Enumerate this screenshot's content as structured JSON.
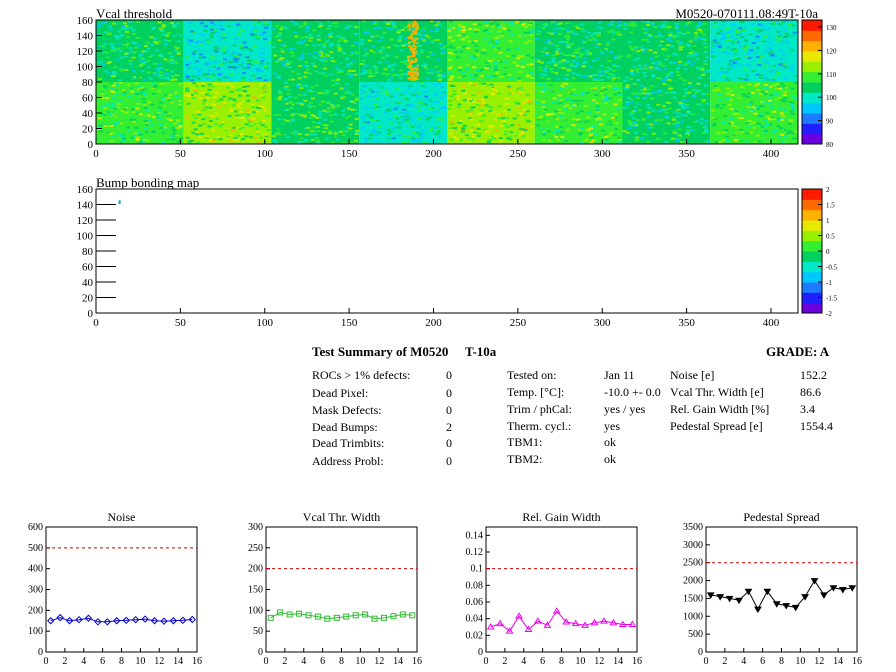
{
  "header": {
    "title": "Vcal threshold",
    "module_id": "M0520-070111.08:49T-10a"
  },
  "summary": {
    "title": "Test Summary of M0520",
    "temp_tag": "T-10a",
    "grade": "GRADE:  A",
    "col1": [
      {
        "label": "ROCs > 1% defects:",
        "value": "0"
      },
      {
        "label": "Dead Pixel:",
        "value": "0"
      },
      {
        "label": "Mask Defects:",
        "value": "0"
      },
      {
        "label": "Dead Bumps:",
        "value": "2"
      },
      {
        "label": "Dead Trimbits:",
        "value": "0"
      },
      {
        "label": "Address Probl:",
        "value": "0"
      }
    ],
    "col2": [
      {
        "label": "Tested on:",
        "value": "Jan 11"
      },
      {
        "label": "Temp. [°C]:",
        "value": "-10.0 +- 0.0"
      },
      {
        "label": "Trim / phCal:",
        "value": "yes / yes"
      },
      {
        "label": "Therm. cycl.:",
        "value": "yes"
      },
      {
        "label": "TBM1:",
        "value": "ok"
      },
      {
        "label": "TBM2:",
        "value": "ok"
      }
    ],
    "col3": [
      {
        "label": "Noise [e]",
        "value": "152.2"
      },
      {
        "label": "Vcal Thr. Width [e]",
        "value": "86.6"
      },
      {
        "label": "Rel. Gain Width [%]",
        "value": "3.4"
      },
      {
        "label": "Pedestal Spread [e]",
        "value": "1554.4"
      }
    ]
  },
  "chart_data": [
    {
      "type": "heatmap",
      "title": "Vcal threshold",
      "x_ticks": [
        "0",
        "50",
        "100",
        "150",
        "200",
        "250",
        "300",
        "350",
        "400"
      ],
      "y_ticks": [
        "0",
        "20",
        "40",
        "60",
        "80",
        "100",
        "120",
        "140",
        "160"
      ],
      "xlim": [
        0,
        416
      ],
      "ylim": [
        0,
        160
      ],
      "roc_cols": 8,
      "roc_rows": 2,
      "roc_means": [
        [
          104,
          100,
          104,
          104,
          108,
          104,
          104,
          100
        ],
        [
          108,
          112,
          106,
          102,
          112,
          108,
          104,
          108
        ]
      ],
      "color_scale": {
        "ticks": [
          "80",
          "90",
          "100",
          "110",
          "120",
          "130"
        ],
        "min": 80,
        "max": 133,
        "colors": [
          "#6a00e0",
          "#2020ff",
          "#1e7bff",
          "#00c8ff",
          "#00e8c8",
          "#00d060",
          "#33ee33",
          "#99f000",
          "#e8e800",
          "#ffb000",
          "#ff6a00",
          "#ff1a00"
        ]
      }
    },
    {
      "type": "heatmap",
      "title": "Bump bonding map",
      "x_ticks": [
        "0",
        "50",
        "100",
        "150",
        "200",
        "250",
        "300",
        "350",
        "400"
      ],
      "y_ticks": [
        "0",
        "20",
        "40",
        "60",
        "80",
        "100",
        "120",
        "140",
        "160"
      ],
      "xlim": [
        0,
        416
      ],
      "ylim": [
        0,
        160
      ],
      "points": [
        {
          "x": 14,
          "y": 144
        },
        {
          "x": 14,
          "y": 142
        }
      ],
      "color_scale": {
        "ticks": [
          "2",
          "1.5",
          "1",
          "0.5",
          "0",
          "-0.5",
          "-1",
          "-1.5",
          "-2"
        ],
        "colors": [
          "#6a00e0",
          "#2020ff",
          "#1e7bff",
          "#00c8ff",
          "#00e8c8",
          "#00d060",
          "#33ee33",
          "#99f000",
          "#e8e800",
          "#ffb000",
          "#ff6a00",
          "#ff1a00"
        ]
      }
    },
    {
      "type": "line",
      "title": "Noise",
      "x": [
        0,
        1,
        2,
        3,
        4,
        5,
        6,
        7,
        8,
        9,
        10,
        11,
        12,
        13,
        14,
        15
      ],
      "y": [
        150,
        165,
        150,
        155,
        162,
        145,
        145,
        150,
        152,
        155,
        158,
        150,
        148,
        150,
        152,
        156
      ],
      "ylim": [
        0,
        600
      ],
      "y_ticks": [
        "0",
        "100",
        "200",
        "300",
        "400",
        "500",
        "600"
      ],
      "x_ticks": [
        "0",
        "2",
        "4",
        "6",
        "8",
        "10",
        "12",
        "14",
        "16"
      ],
      "limit": 500,
      "color": "#0000cc"
    },
    {
      "type": "line",
      "title": "Vcal Thr. Width",
      "x": [
        0,
        1,
        2,
        3,
        4,
        5,
        6,
        7,
        8,
        9,
        10,
        11,
        12,
        13,
        14,
        15
      ],
      "y": [
        82,
        95,
        90,
        92,
        88,
        85,
        80,
        82,
        85,
        88,
        90,
        80,
        82,
        86,
        90,
        88
      ],
      "ylim": [
        0,
        300
      ],
      "y_ticks": [
        "0",
        "50",
        "100",
        "150",
        "200",
        "250",
        "300"
      ],
      "x_ticks": [
        "0",
        "2",
        "4",
        "6",
        "8",
        "10",
        "12",
        "14",
        "16"
      ],
      "limit": 200,
      "color": "#33bb33"
    },
    {
      "type": "line",
      "title": "Rel. Gain Width",
      "x": [
        0,
        1,
        2,
        3,
        4,
        5,
        6,
        7,
        8,
        9,
        10,
        11,
        12,
        13,
        14,
        15
      ],
      "y": [
        0.03,
        0.034,
        0.025,
        0.043,
        0.027,
        0.037,
        0.032,
        0.049,
        0.036,
        0.034,
        0.032,
        0.035,
        0.037,
        0.035,
        0.033,
        0.033
      ],
      "ylim": [
        0,
        0.15
      ],
      "y_ticks": [
        "0",
        "0.02",
        "0.04",
        "0.06",
        "0.08",
        "0.1",
        "0.12",
        "0.14"
      ],
      "x_ticks": [
        "0",
        "2",
        "4",
        "6",
        "8",
        "10",
        "12",
        "14",
        "16"
      ],
      "limit": 0.1,
      "color": "#ee00ee"
    },
    {
      "type": "line",
      "title": "Pedestal Spread",
      "x": [
        0,
        1,
        2,
        3,
        4,
        5,
        6,
        7,
        8,
        9,
        10,
        11,
        12,
        13,
        14,
        15
      ],
      "y": [
        1600,
        1550,
        1500,
        1450,
        1700,
        1200,
        1700,
        1350,
        1300,
        1250,
        1550,
        2000,
        1600,
        1800,
        1750,
        1800
      ],
      "ylim": [
        0,
        3500
      ],
      "y_ticks": [
        "0",
        "500",
        "1000",
        "1500",
        "2000",
        "2500",
        "3000",
        "3500"
      ],
      "x_ticks": [
        "0",
        "2",
        "4",
        "6",
        "8",
        "10",
        "12",
        "14",
        "16"
      ],
      "limit": 2500,
      "color": "#000000"
    }
  ]
}
